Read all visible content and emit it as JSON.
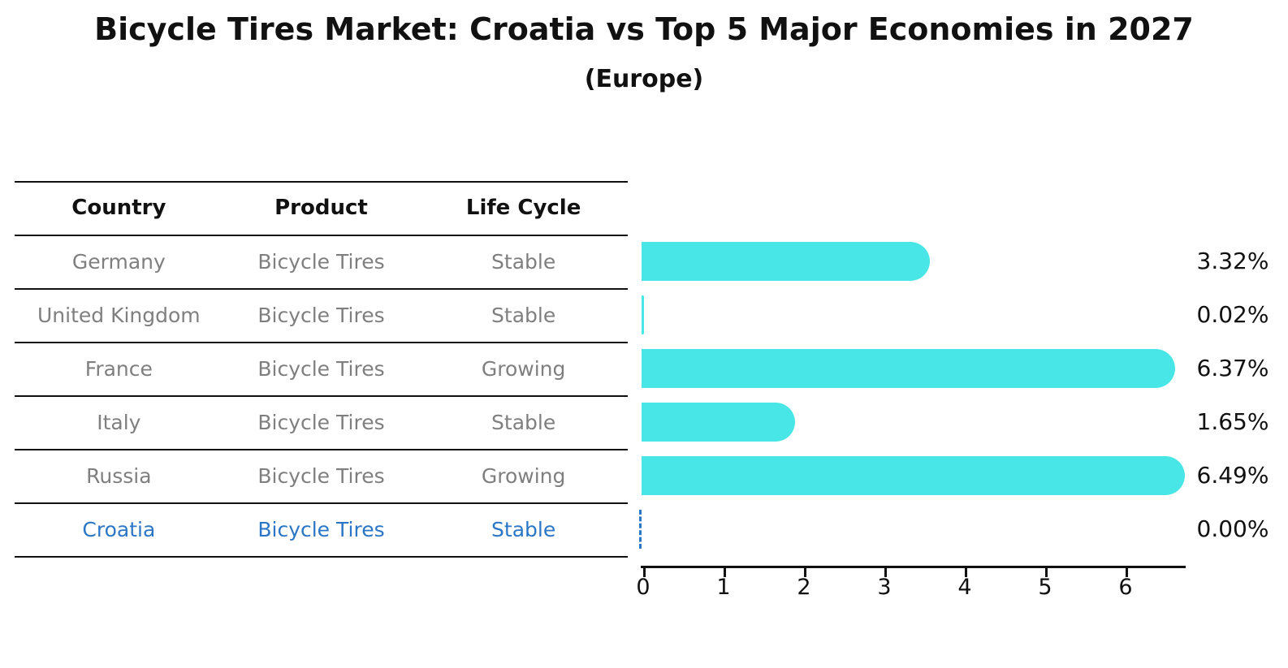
{
  "header": {
    "title": "Bicycle Tires Market: Croatia vs Top 5 Major Economies in 2027",
    "subtitle": "(Europe)"
  },
  "table": {
    "headers": [
      "Country",
      "Product",
      "Life Cycle"
    ],
    "rows": [
      {
        "country": "Germany",
        "product": "Bicycle Tires",
        "life_cycle": "Stable",
        "highlight": false
      },
      {
        "country": "United Kingdom",
        "product": "Bicycle Tires",
        "life_cycle": "Stable",
        "highlight": false
      },
      {
        "country": "France",
        "product": "Bicycle Tires",
        "life_cycle": "Growing",
        "highlight": false
      },
      {
        "country": "Italy",
        "product": "Bicycle Tires",
        "life_cycle": "Stable",
        "highlight": false
      },
      {
        "country": "Russia",
        "product": "Bicycle Tires",
        "life_cycle": "Growing",
        "highlight": false
      },
      {
        "country": "Croatia",
        "product": "Bicycle Tires",
        "life_cycle": "Stable",
        "highlight": true
      }
    ]
  },
  "chart_data": {
    "type": "bar",
    "orientation": "horizontal",
    "title": "Bicycle Tires Market: Croatia vs Top 5 Major Economies in 2027",
    "subtitle": "(Europe)",
    "categories": [
      "Germany",
      "United Kingdom",
      "France",
      "Italy",
      "Russia",
      "Croatia"
    ],
    "values": [
      3.32,
      0.02,
      6.37,
      1.65,
      6.49,
      0.0
    ],
    "value_labels": [
      "3.32%",
      "0.02%",
      "6.37%",
      "1.65%",
      "6.49%",
      "0.00%"
    ],
    "xlabel": "",
    "ylabel": "",
    "xlim": [
      0,
      6.77
    ],
    "x_ticks": [
      0,
      1,
      2,
      3,
      4,
      5,
      6
    ],
    "grid": false,
    "legend": false,
    "bar_color": "#48E6E6",
    "highlight_color": "#2B76C6",
    "highlight_category": "Croatia",
    "highlight_index": 5
  },
  "colors": {
    "bar": "#48E6E6",
    "highlight_blue": "#2B76C6",
    "row_text_gray": "#7f7f7f",
    "line_black": "#111111",
    "background": "#ffffff"
  }
}
